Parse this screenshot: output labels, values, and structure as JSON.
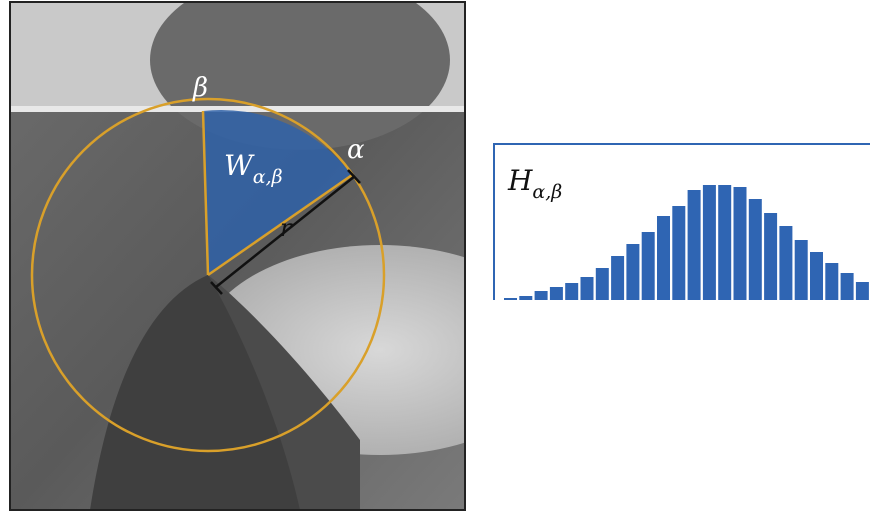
{
  "photo": {
    "beta": "β",
    "alpha": "α",
    "window": {
      "symbol": "W",
      "subscript": "α,β"
    },
    "radius": "r"
  },
  "histogram": {
    "symbol": "H",
    "subscript": "α,β",
    "color": "#2f65b3",
    "values": [
      2,
      4,
      9,
      13,
      17,
      23,
      32,
      44,
      56,
      68,
      84,
      94,
      110,
      115,
      115,
      113,
      101,
      87,
      74,
      60,
      48,
      37,
      27,
      18
    ]
  }
}
